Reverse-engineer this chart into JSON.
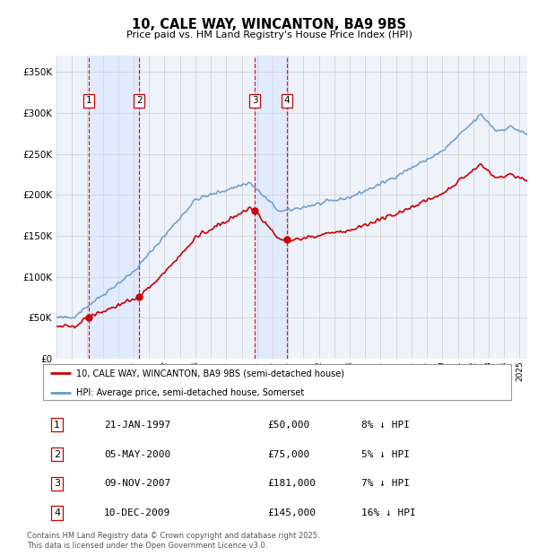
{
  "title": "10, CALE WAY, WINCANTON, BA9 9BS",
  "subtitle": "Price paid vs. HM Land Registry's House Price Index (HPI)",
  "ylim": [
    0,
    370000
  ],
  "yticks": [
    0,
    50000,
    100000,
    150000,
    200000,
    250000,
    300000,
    350000
  ],
  "ytick_labels": [
    "£0",
    "£50K",
    "£100K",
    "£150K",
    "£200K",
    "£250K",
    "£300K",
    "£350K"
  ],
  "sale_dates": [
    1997.07,
    2000.35,
    2007.86,
    2009.94
  ],
  "sale_prices": [
    50000,
    75000,
    181000,
    145000
  ],
  "sale_labels": [
    "1",
    "2",
    "3",
    "4"
  ],
  "sale_info": [
    {
      "label": "1",
      "date": "21-JAN-1997",
      "price": "£50,000",
      "hpi": "8% ↓ HPI"
    },
    {
      "label": "2",
      "date": "05-MAY-2000",
      "price": "£75,000",
      "hpi": "5% ↓ HPI"
    },
    {
      "label": "3",
      "date": "09-NOV-2007",
      "price": "£181,000",
      "hpi": "7% ↓ HPI"
    },
    {
      "label": "4",
      "date": "10-DEC-2009",
      "price": "£145,000",
      "hpi": "16% ↓ HPI"
    }
  ],
  "property_line_color": "#cc0000",
  "hpi_line_color": "#6699cc",
  "vline_color": "#cc0000",
  "shade_color": "#ddeeff",
  "grid_color": "#cccccc",
  "legend_label_property": "10, CALE WAY, WINCANTON, BA9 9BS (semi-detached house)",
  "legend_label_hpi": "HPI: Average price, semi-detached house, Somerset",
  "footnote": "Contains HM Land Registry data © Crown copyright and database right 2025.\nThis data is licensed under the Open Government Licence v3.0.",
  "xlim_start": 1995.0,
  "xlim_end": 2025.5,
  "background_color": "#ffffff",
  "plot_bg_color": "#eef2fb"
}
